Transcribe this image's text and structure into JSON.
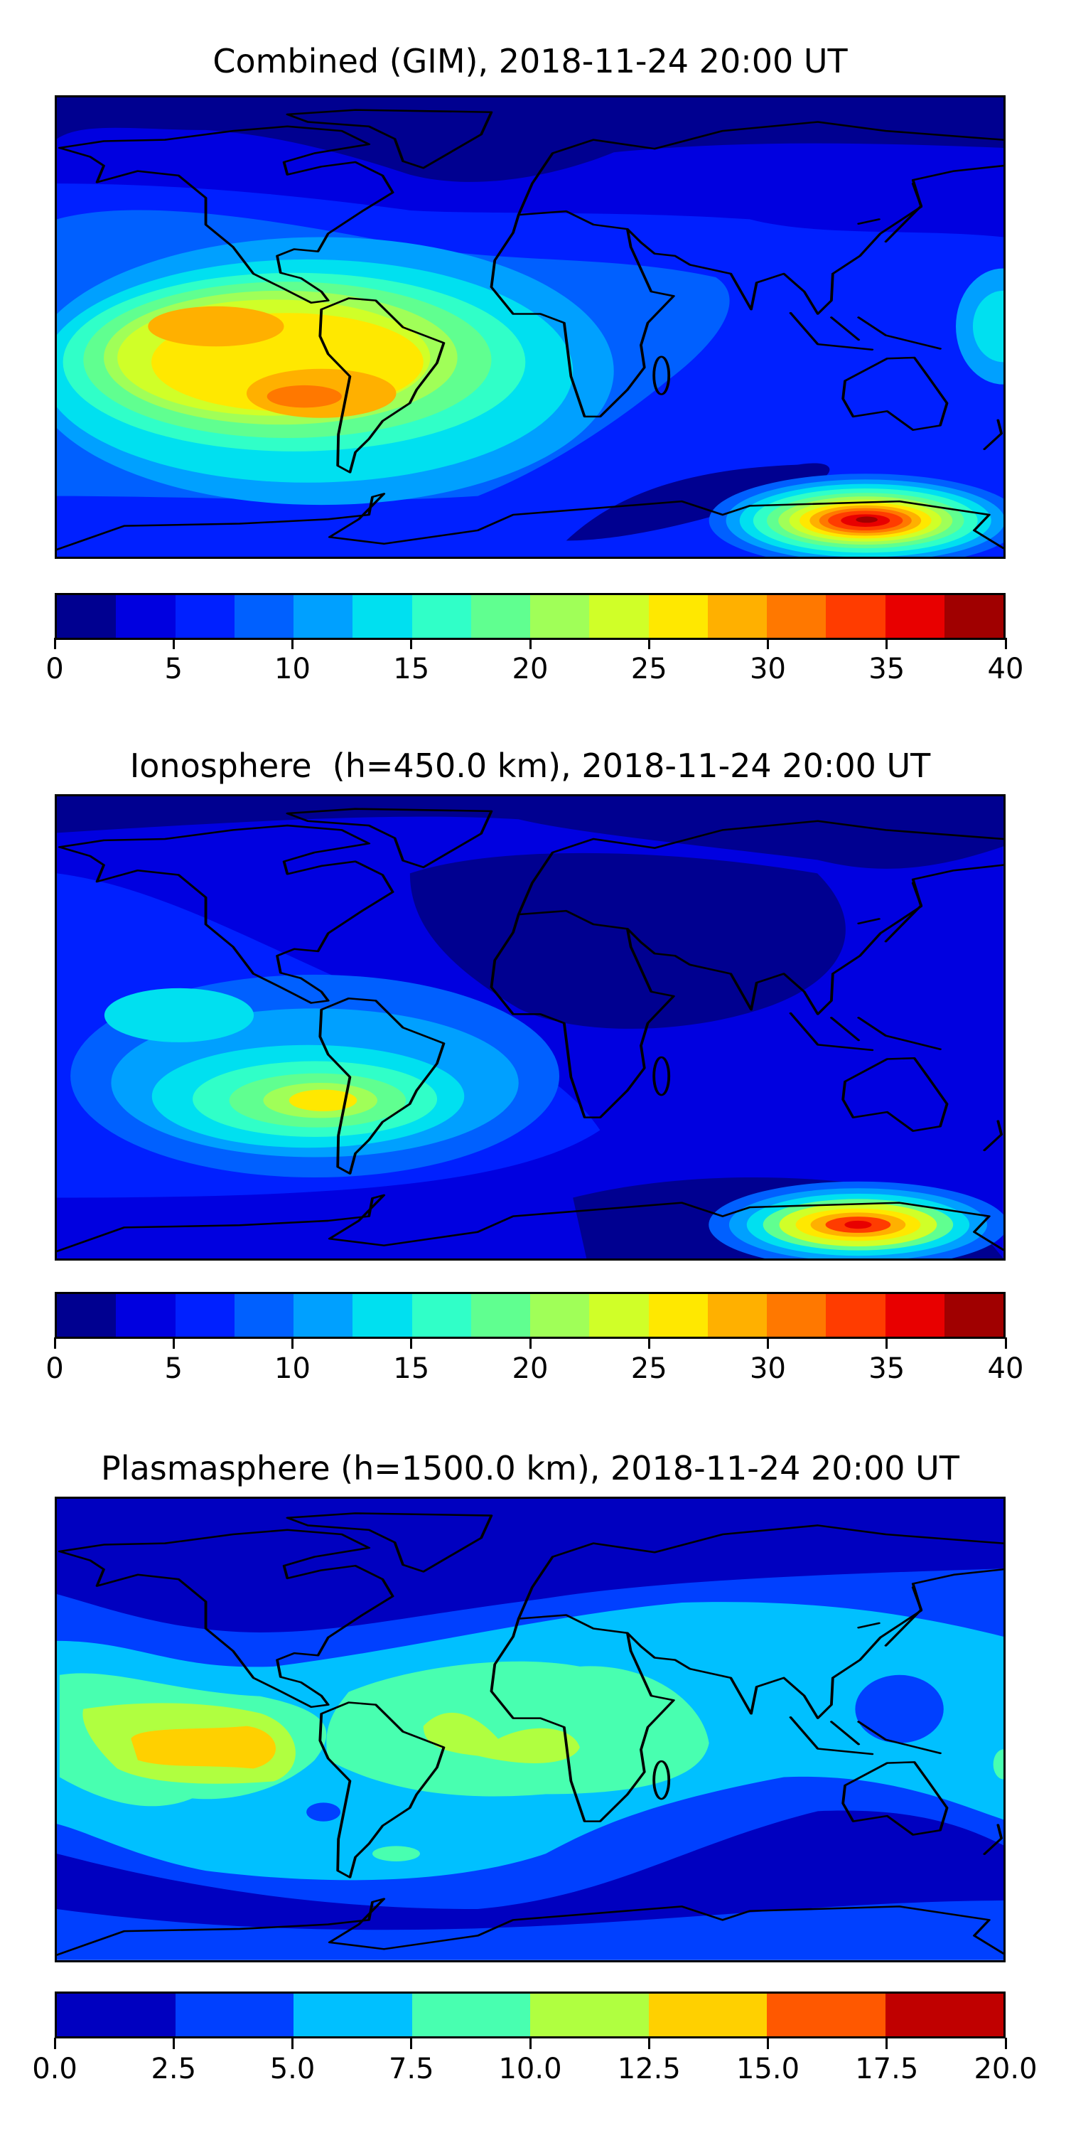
{
  "chart_data": [
    {
      "type": "heatmap",
      "title": "Combined (GIM), 2018-11-24 20:00 UT",
      "projection": "global map, coastlines",
      "colorbar": {
        "range": [
          0,
          40
        ],
        "levels_step": 2.5,
        "tick_labels": [
          "0",
          "5",
          "10",
          "15",
          "20",
          "25",
          "30",
          "35",
          "40"
        ],
        "colors": [
          "#000090",
          "#0000e0",
          "#0020ff",
          "#0060ff",
          "#00a0ff",
          "#00e0f0",
          "#30ffc8",
          "#60ff90",
          "#a0ff58",
          "#d0ff28",
          "#ffe800",
          "#ffb000",
          "#ff7800",
          "#ff3c00",
          "#e80000",
          "#a00000"
        ]
      },
      "features": [
        {
          "label": "peak over eastern Pacific / South America",
          "level_max": 32.5
        },
        {
          "label": "peak south of Australia near Antarctica",
          "level_max": 40
        }
      ]
    },
    {
      "type": "heatmap",
      "title": "Ionosphere  (h=450.0 km), 2018-11-24 20:00 UT",
      "projection": "global map, coastlines",
      "colorbar": {
        "range": [
          0,
          40
        ],
        "levels_step": 2.5,
        "tick_labels": [
          "0",
          "5",
          "10",
          "15",
          "20",
          "25",
          "30",
          "35",
          "40"
        ],
        "colors": [
          "#000090",
          "#0000e0",
          "#0020ff",
          "#0060ff",
          "#00a0ff",
          "#00e0f0",
          "#30ffc8",
          "#60ff90",
          "#a0ff58",
          "#d0ff28",
          "#ffe800",
          "#ffb000",
          "#ff7800",
          "#ff3c00",
          "#e80000",
          "#a00000"
        ]
      },
      "features": [
        {
          "label": "peak west of South America",
          "level_max": 27.5
        },
        {
          "label": "peak south of Australia near Antarctica",
          "level_max": 37.5
        }
      ]
    },
    {
      "type": "heatmap",
      "title": "Plasmasphere (h=1500.0 km), 2018-11-24 20:00 UT",
      "projection": "global map, coastlines",
      "colorbar": {
        "range": [
          0,
          20
        ],
        "levels_step": 2.5,
        "tick_labels": [
          "0.0",
          "2.5",
          "5.0",
          "7.5",
          "10.0",
          "12.5",
          "15.0",
          "17.5",
          "20.0"
        ],
        "colors": [
          "#0000c0",
          "#0040ff",
          "#00c0ff",
          "#48ffb0",
          "#b0ff40",
          "#ffd000",
          "#ff5800",
          "#c00000"
        ]
      },
      "features": [
        {
          "label": "equatorial band maximum over eastern Pacific",
          "level_max": 15.0
        }
      ]
    }
  ]
}
